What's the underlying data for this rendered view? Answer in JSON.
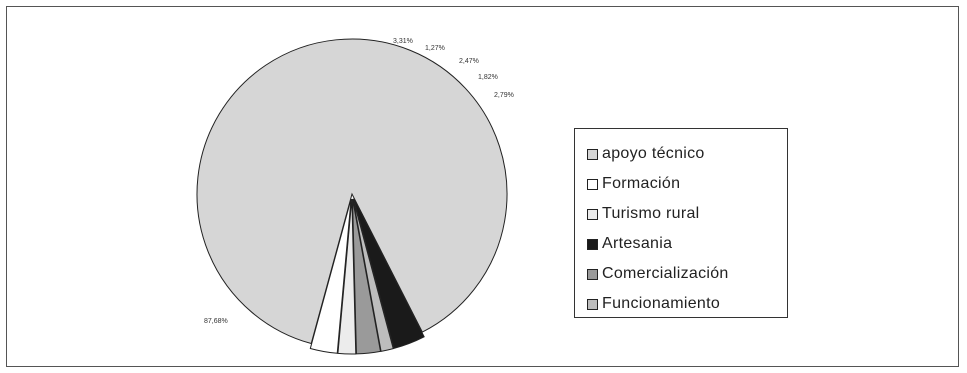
{
  "chart_data": {
    "type": "pie",
    "title": "",
    "categories": [
      "apoyo técnico",
      "Formación",
      "Turismo rural",
      "Artesania",
      "Comercialización",
      "Funcionamiento"
    ],
    "values": [
      87.68,
      2.79,
      1.82,
      3.31,
      2.47,
      1.27
    ],
    "value_labels": [
      "87,68%",
      "2,79%",
      "1,82%",
      "3,31%",
      "2,47%",
      "1,27%"
    ],
    "exploded": [
      false,
      true,
      true,
      true,
      true,
      true
    ],
    "colors": [
      "#d6d6d6",
      "#ffffff",
      "#ececec",
      "#1a1a1a",
      "#9a9a9a",
      "#bdbdbd"
    ],
    "legend": {
      "placement": "right"
    }
  }
}
